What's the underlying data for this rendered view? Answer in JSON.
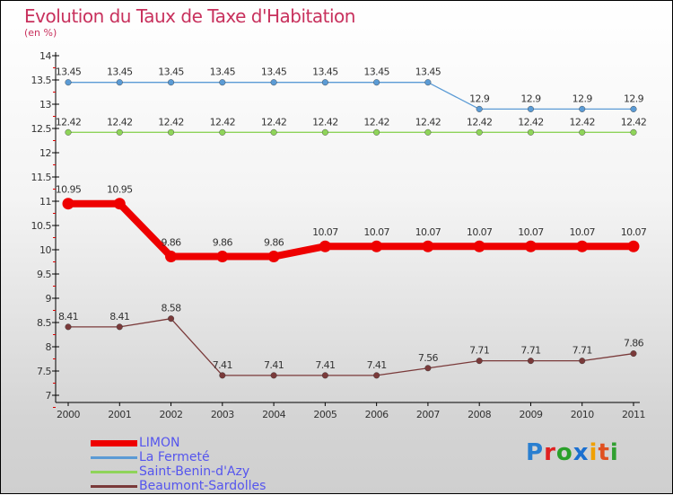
{
  "chart_data": {
    "type": "line",
    "title": "Evolution du Taux de Taxe d'Habitation",
    "subtitle": "(en %)",
    "x": [
      "2000",
      "2001",
      "2002",
      "2003",
      "2004",
      "2005",
      "2006",
      "2007",
      "2008",
      "2009",
      "2010",
      "2011"
    ],
    "ylim": [
      7,
      14
    ],
    "yticks": [
      "7",
      "7.5",
      "8",
      "8.5",
      "9",
      "9.5",
      "10",
      "10.5",
      "11",
      "11.5",
      "12",
      "12.5",
      "13",
      "13.5",
      "14"
    ],
    "series": [
      {
        "name": "LIMON",
        "color": "#ee0000",
        "values": [
          10.95,
          10.95,
          9.86,
          9.86,
          9.86,
          10.07,
          10.07,
          10.07,
          10.07,
          10.07,
          10.07,
          10.07
        ],
        "labels": [
          "10.95",
          "10.95",
          "9.86",
          "9.86",
          "9.86",
          "10.07",
          "10.07",
          "10.07",
          "10.07",
          "10.07",
          "10.07",
          "10.07"
        ]
      },
      {
        "name": "La Fermeté",
        "color": "#5b9bd5",
        "values": [
          13.45,
          13.45,
          13.45,
          13.45,
          13.45,
          13.45,
          13.45,
          13.45,
          12.9,
          12.9,
          12.9,
          12.9
        ],
        "labels": [
          "13.45",
          "13.45",
          "13.45",
          "13.45",
          "13.45",
          "13.45",
          "13.45",
          "13.45",
          "12.9",
          "12.9",
          "12.9",
          "12.9"
        ]
      },
      {
        "name": "Saint-Benin-d'Azy",
        "color": "#8fd45a",
        "values": [
          12.42,
          12.42,
          12.42,
          12.42,
          12.42,
          12.42,
          12.42,
          12.42,
          12.42,
          12.42,
          12.42,
          12.42
        ],
        "labels": [
          "12.42",
          "12.42",
          "12.42",
          "12.42",
          "12.42",
          "12.42",
          "12.42",
          "12.42",
          "12.42",
          "12.42",
          "12.42",
          "12.42"
        ]
      },
      {
        "name": "Beaumont-Sardolles",
        "color": "#7a3a3a",
        "values": [
          8.41,
          8.41,
          8.58,
          7.41,
          7.41,
          7.41,
          7.41,
          7.56,
          7.71,
          7.71,
          7.71,
          7.86
        ],
        "labels": [
          "8.41",
          "8.41",
          "8.58",
          "7.41",
          "7.41",
          "7.41",
          "7.41",
          "7.56",
          "7.71",
          "7.71",
          "7.71",
          "7.86"
        ]
      }
    ],
    "legend": "bottom-left"
  },
  "logo": "Proxiti"
}
